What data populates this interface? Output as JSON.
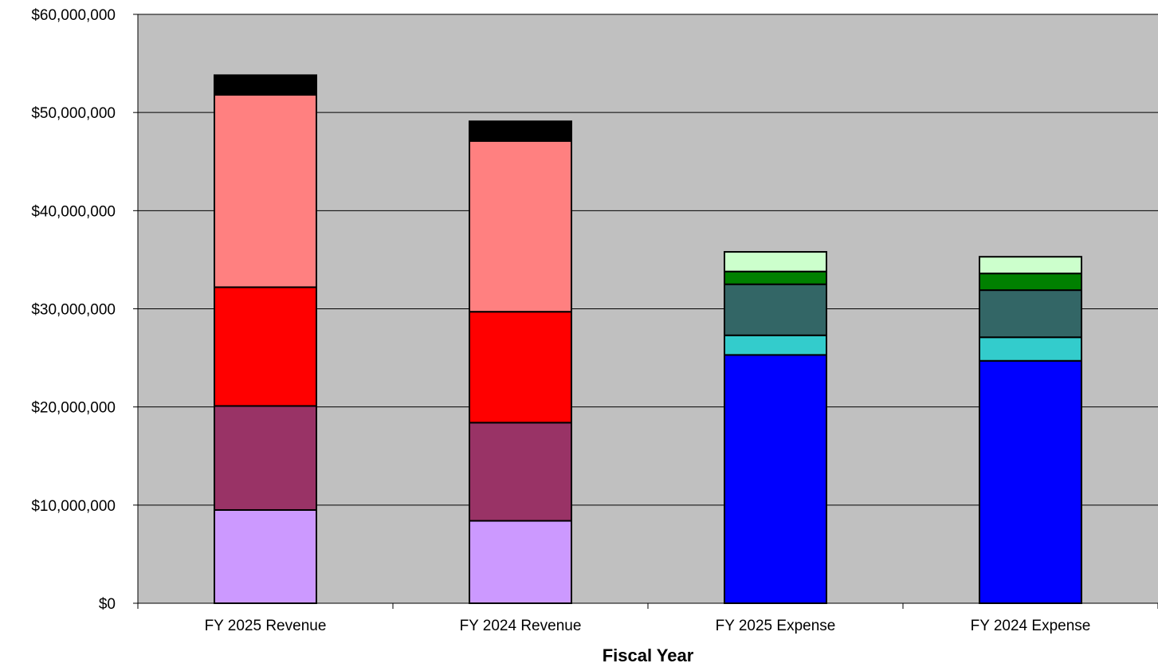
{
  "chart_data": {
    "type": "bar",
    "stacked": true,
    "title": "",
    "xlabel": "Fiscal Year",
    "ylabel": "",
    "ylim": [
      0,
      60000000
    ],
    "yticks": [
      0,
      10000000,
      20000000,
      30000000,
      40000000,
      50000000,
      60000000
    ],
    "ytick_labels": [
      "$0",
      "$10,000,000",
      "$20,000,000",
      "$30,000,000",
      "$40,000,000",
      "$50,000,000",
      "$60,000,000"
    ],
    "grid": true,
    "legend": "none",
    "categories": [
      "FY 2025 Revenue",
      "FY 2024 Revenue",
      "FY 2025 Expense",
      "FY 2024 Expense"
    ],
    "series": [
      {
        "color": "#CC99FF",
        "values": [
          9500000,
          8400000,
          0,
          0
        ]
      },
      {
        "color": "#993366",
        "values": [
          10600000,
          10000000,
          0,
          0
        ]
      },
      {
        "color": "#FF0000",
        "values": [
          12100000,
          11300000,
          0,
          0
        ]
      },
      {
        "color": "#FF8080",
        "values": [
          19600000,
          17400000,
          0,
          0
        ]
      },
      {
        "color": "#000000",
        "values": [
          2000000,
          2000000,
          0,
          0
        ]
      },
      {
        "color": "#0000FF",
        "values": [
          0,
          0,
          25300000,
          24700000
        ]
      },
      {
        "color": "#33CCCC",
        "values": [
          0,
          0,
          2000000,
          2400000
        ]
      },
      {
        "color": "#336666",
        "values": [
          0,
          0,
          5200000,
          4800000
        ]
      },
      {
        "color": "#008000",
        "values": [
          0,
          0,
          1300000,
          1700000
        ]
      },
      {
        "color": "#CCFFCC",
        "values": [
          0,
          0,
          2000000,
          1700000
        ]
      }
    ],
    "plot_background": "#C0C0C0",
    "gridline_color": "#000000",
    "bar_outline_color": "#000000"
  }
}
